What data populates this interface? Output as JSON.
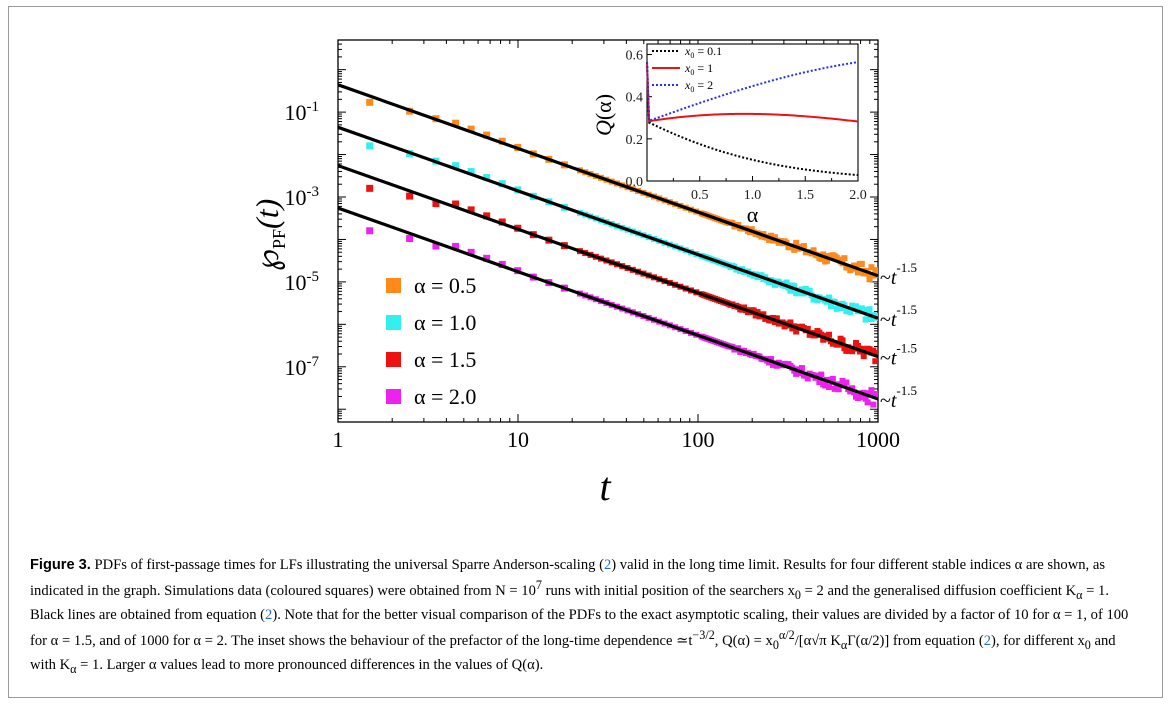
{
  "figure": {
    "label": "Figure 3.",
    "caption": {
      "t1": "PDFs of first-passage times for LFs illustrating the universal Sparre Anderson-scaling (",
      "ref": "2",
      "t2": ") valid in the long time limit. Results for four different stable indices α are shown, as indicated in the graph. Simulations data (coloured squares) were obtained from N = 10",
      "sup7": "7",
      "t3": " runs with initial position of the searchers x",
      "sub0": "0",
      "t4": " = 2 and the generalised diffusion coefficient K",
      "subA": "α",
      "t5": " = 1. Black lines are obtained from equation (",
      "t6": "). Note that for the better visual comparison of the PDFs to the exact asymptotic scaling, their values are divided by a factor of 10 for α = 1, of 100 for α = 1.5, and of 1000 for α = 2. The inset shows the behaviour of the prefactor of the long-time dependence ≃t",
      "supExp": "−3/2",
      "t7": ", Q(α) = x",
      "t8": "α/2",
      "t9": "/[α√π K",
      "t10": "Γ(α/2)] from equation (",
      "t11": "), for different x",
      "t12": " and with K",
      "t13": " = 1. Larger α values lead to more pronounced differences in the values of Q(α)."
    }
  },
  "chart_data": [
    {
      "type": "scatter",
      "xlabel": "t",
      "ylabel": "℘PF(t)",
      "xscale": "log",
      "yscale": "log",
      "xlim": [
        1,
        1000
      ],
      "ylim": [
        5e-09,
        5
      ],
      "x_ticks": [
        "1",
        "10",
        "100",
        "1000"
      ],
      "y_ticks": [
        "10-7",
        "10-5",
        "10-3",
        "10-1"
      ],
      "y_tick_values": [
        1e-07,
        1e-05,
        0.001,
        0.1
      ],
      "legend_placement": "bottom-left",
      "series": [
        {
          "name": "α = 0.5",
          "color": "#ff8a1c",
          "prefactor": 0.44,
          "first": [
            [
              1.5,
              0.17
            ],
            [
              2.5,
              0.105
            ],
            [
              3.5,
              0.07
            ]
          ]
        },
        {
          "name": "α = 1.0",
          "color": "#33f0f0",
          "prefactor": 0.044,
          "first": [
            [
              1.5,
              0.016
            ],
            [
              2.5,
              0.0105
            ],
            [
              3.5,
              0.007
            ]
          ]
        },
        {
          "name": "α = 1.5",
          "color": "#ee1111",
          "prefactor": 0.0055,
          "first": [
            [
              1.5,
              0.0016
            ],
            [
              2.5,
              0.00105
            ],
            [
              3.5,
              0.0007
            ]
          ]
        },
        {
          "name": "α = 2.0",
          "color": "#ee22ee",
          "prefactor": 0.00055,
          "first": [
            [
              1.5,
              0.00016
            ],
            [
              2.5,
              0.000105
            ],
            [
              3.5,
              7e-05
            ]
          ]
        }
      ],
      "fit_annotation": "~t",
      "fit_exponent": "-1.5",
      "fit_color": "#000000"
    },
    {
      "type": "line",
      "xlabel": "α",
      "ylabel": "Q(α)",
      "xlim": [
        0,
        2
      ],
      "ylim": [
        0,
        0.65
      ],
      "x_ticks": [
        "0.5",
        "1.0",
        "1.5",
        "2.0"
      ],
      "x_tick_values": [
        0.5,
        1.0,
        1.5,
        2.0
      ],
      "y_ticks": [
        "0.0",
        "0.2",
        "0.4",
        "0.6"
      ],
      "y_tick_values": [
        0.0,
        0.2,
        0.4,
        0.6
      ],
      "legend_placement": "top-left",
      "series": [
        {
          "name": "x0 = 0.1",
          "label_var": "x",
          "label_sub": "0",
          "label_rest": " = 0.1",
          "x0": 0.1,
          "color": "#000000",
          "dash": "dotted"
        },
        {
          "name": "x0 = 1",
          "label_var": "x",
          "label_sub": "0",
          "label_rest": " = 1",
          "x0": 1,
          "color": "#ee1111",
          "dash": "solid"
        },
        {
          "name": "x0 = 2",
          "label_var": "x",
          "label_sub": "0",
          "label_rest": " = 2",
          "x0": 2,
          "color": "#2233ee",
          "dash": "dotted"
        }
      ]
    }
  ]
}
